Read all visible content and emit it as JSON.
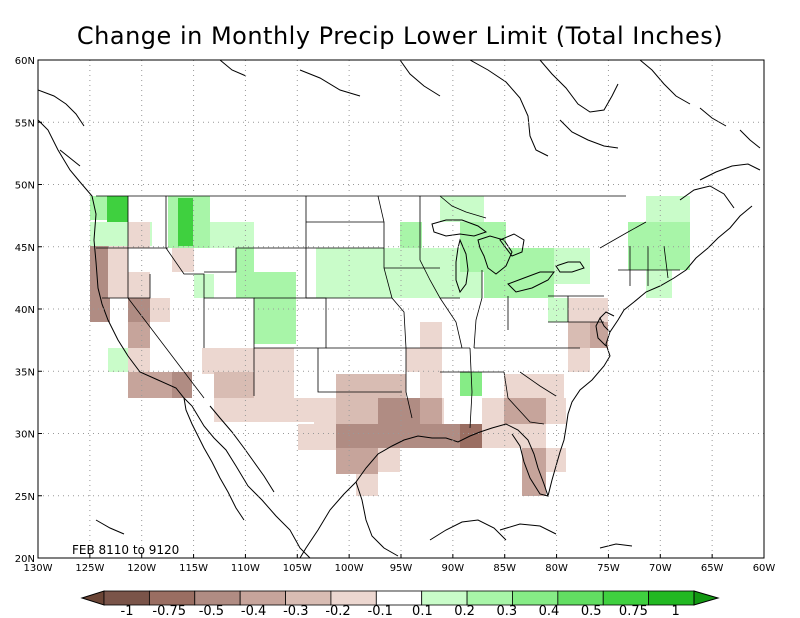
{
  "title": "Change in Monthly Precip Lower Limit (Total Inches)",
  "period_label": "FEB 8110 to 9120",
  "lat_labels": [
    "20N",
    "25N",
    "30N",
    "35N",
    "40N",
    "45N",
    "50N",
    "55N",
    "60N"
  ],
  "lon_labels": [
    "130W",
    "125W",
    "120W",
    "115W",
    "110W",
    "105W",
    "100W",
    "95W",
    "90W",
    "85W",
    "80W",
    "75W",
    "70W",
    "65W",
    "60W"
  ],
  "legend": {
    "labels": [
      "-1",
      "-0.75",
      "-0.5",
      "-0.4",
      "-0.3",
      "-0.2",
      "-0.1",
      "0.1",
      "0.2",
      "0.3",
      "0.4",
      "0.5",
      "0.75",
      "1"
    ],
    "colors": [
      "#7a5449",
      "#9a6e62",
      "#b08c83",
      "#c6a49b",
      "#d8bcb3",
      "#ecd7d0",
      "#ffffff",
      "#c9fcc9",
      "#a8f5a8",
      "#86ec86",
      "#62de62",
      "#3fd03f",
      "#22b822"
    ],
    "end_colors": [
      "#6b4536",
      "#129812"
    ]
  },
  "chart_data": {
    "type": "heatmap",
    "title": "Change in Monthly Precip Lower Limit (Total Inches)",
    "annotation": "FEB 8110 to 9120",
    "x_range": [
      -130,
      -60
    ],
    "y_range": [
      20,
      60
    ],
    "grid": true,
    "cell_size_deg": 2.5,
    "colors": {
      "-0.5": "#b08c83",
      "-0.4": "#c6a49b",
      "-0.3": "#d8bcb3",
      "-0.2": "#ecd7d0",
      "0.2": "#a8f5a8",
      "0.3": "#86ec86",
      "0.5": "#3fd03f"
    },
    "cells": [
      {
        "lon": -124.5,
        "lat": 47.5,
        "v": 0.3
      },
      {
        "lon": -123.5,
        "lat": 48.0,
        "v": 0.5
      },
      {
        "lon": -122,
        "lat": 47.5,
        "v": 0.3
      },
      {
        "lon": -121,
        "lat": 45.5,
        "v": 0.2
      },
      {
        "lon": -117,
        "lat": 48.0,
        "v": 0.5
      },
      {
        "lon": -116,
        "lat": 46.0,
        "v": 0.3
      },
      {
        "lon": -114,
        "lat": 46.5,
        "v": 0.3
      },
      {
        "lon": -112,
        "lat": 45.5,
        "v": 0.2
      },
      {
        "lon": -110,
        "lat": 44.0,
        "v": 0.3
      },
      {
        "lon": -107,
        "lat": 42.0,
        "v": 0.2
      },
      {
        "lon": -108,
        "lat": 39.0,
        "v": 0.3
      },
      {
        "lon": -103,
        "lat": 43.5,
        "v": 0.2
      },
      {
        "lon": -98,
        "lat": 42.5,
        "v": 0.2
      },
      {
        "lon": -93,
        "lat": 44.0,
        "v": 0.2
      },
      {
        "lon": -88,
        "lat": 46.5,
        "v": 0.3
      },
      {
        "lon": -85,
        "lat": 44.0,
        "v": 0.2
      },
      {
        "lon": -81,
        "lat": 42.5,
        "v": 0.2
      },
      {
        "lon": -76,
        "lat": 44.5,
        "v": 0.2
      },
      {
        "lon": -71,
        "lat": 45.5,
        "v": 0.3
      },
      {
        "lon": -89,
        "lat": 33.5,
        "v": 0.3
      },
      {
        "lon": -124,
        "lat": 42.0,
        "v": -0.4
      },
      {
        "lon": -123,
        "lat": 40.0,
        "v": -0.5
      },
      {
        "lon": -120,
        "lat": 39.5,
        "v": -0.4
      },
      {
        "lon": -119,
        "lat": 35.5,
        "v": -0.2
      },
      {
        "lon": -118,
        "lat": 33.5,
        "v": -0.4
      },
      {
        "lon": -113,
        "lat": 33.0,
        "v": -0.3
      },
      {
        "lon": -108,
        "lat": 33.0,
        "v": -0.3
      },
      {
        "lon": -103,
        "lat": 31.0,
        "v": -0.2
      },
      {
        "lon": -99,
        "lat": 29.5,
        "v": -0.4
      },
      {
        "lon": -96,
        "lat": 30.5,
        "v": -0.5
      },
      {
        "lon": -92,
        "lat": 30.0,
        "v": -0.5
      },
      {
        "lon": -88,
        "lat": 30.5,
        "v": -0.5
      },
      {
        "lon": -84,
        "lat": 31.5,
        "v": -0.4
      },
      {
        "lon": -81,
        "lat": 27.5,
        "v": -0.4
      },
      {
        "lon": -78,
        "lat": 36.5,
        "v": -0.3
      },
      {
        "lon": -92,
        "lat": 35.5,
        "v": -0.2
      },
      {
        "lon": -81,
        "lat": 33.5,
        "v": -0.3
      }
    ]
  }
}
